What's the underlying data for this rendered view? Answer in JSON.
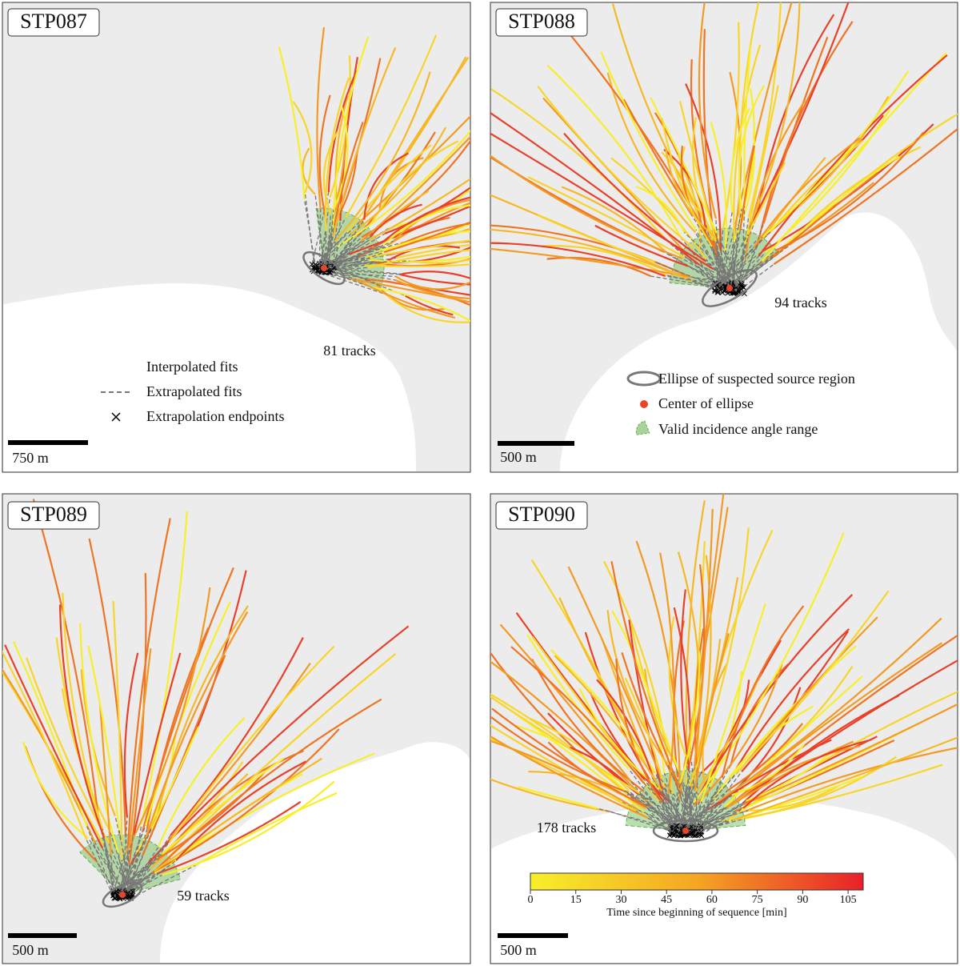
{
  "panels": [
    {
      "title": "STP087",
      "tracks_label": "81 tracks",
      "scale_label": "750 m",
      "legend": [
        "Interpolated fits",
        "Extrapolated fits",
        "Extrapolation endpoints"
      ]
    },
    {
      "title": "STP088",
      "tracks_label": "94 tracks",
      "scale_label": "500 m",
      "legend": [
        "Ellipse of suspected source region",
        "Center of ellipse",
        "Valid incidence angle range"
      ]
    },
    {
      "title": "STP089",
      "tracks_label": "59 tracks",
      "scale_label": "500 m"
    },
    {
      "title": "STP090",
      "tracks_label": "178 tracks",
      "scale_label": "500 m"
    }
  ],
  "colorbar": {
    "label": "Time since beginning of sequence [min]",
    "lim": [
      0,
      110
    ],
    "ticks": [
      0,
      15,
      30,
      45,
      60,
      75,
      90,
      105
    ]
  }
}
